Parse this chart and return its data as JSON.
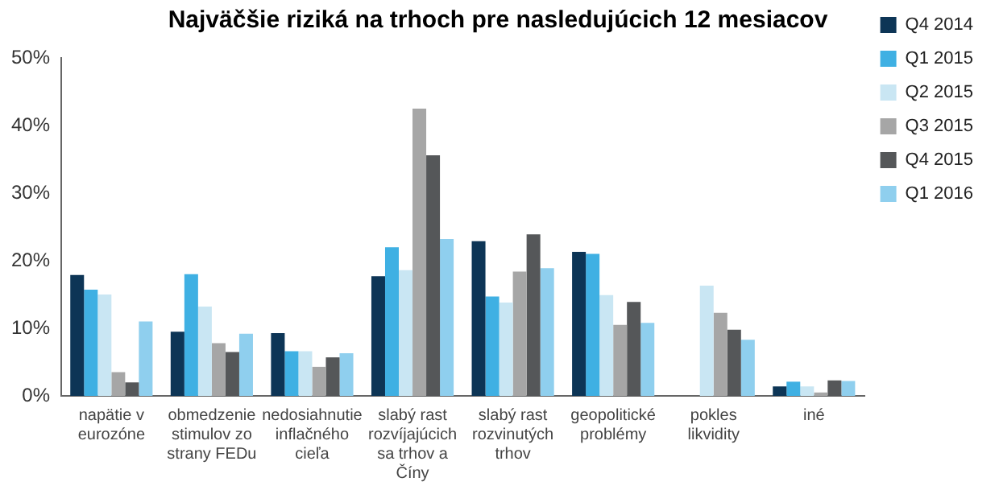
{
  "chart_data": {
    "type": "bar",
    "title": "Najväčšie riziká na trhoch pre nasledujúcich 12 mesiacov",
    "categories": [
      "napätie v eurozóne",
      "obmedzenie stimulov zo strany FEDu",
      "nedosiahnutie inflačného cieľa",
      "slabý rast rozvíjajúcich sa trhov a Číny",
      "slabý rast rozvinutých trhov",
      "geopolitické problémy",
      "pokles likvidity",
      "iné"
    ],
    "series": [
      {
        "name": "Q4 2014",
        "color": "#0d3556",
        "values": [
          17.9,
          9.5,
          9.3,
          17.7,
          22.9,
          21.3,
          null,
          1.4
        ]
      },
      {
        "name": "Q1 2015",
        "color": "#3fb0e3",
        "values": [
          15.7,
          18,
          6.6,
          22,
          14.7,
          21,
          null,
          2.1
        ]
      },
      {
        "name": "Q2 2015",
        "color": "#c9e6f3",
        "values": [
          15,
          13.2,
          6.6,
          18.6,
          13.8,
          14.9,
          16.3,
          1.4
        ]
      },
      {
        "name": "Q3 2015",
        "color": "#a6a6a6",
        "values": [
          3.5,
          7.8,
          4.3,
          42.5,
          18.4,
          10.5,
          12.3,
          0.5
        ]
      },
      {
        "name": "Q4 2015",
        "color": "#555759",
        "values": [
          2,
          6.5,
          5.7,
          35.6,
          23.9,
          13.9,
          9.8,
          2.3
        ]
      },
      {
        "name": "Q1 2016",
        "color": "#8fcfee",
        "values": [
          11,
          9.2,
          6.3,
          23.2,
          18.9,
          10.8,
          8.3,
          2.2
        ]
      }
    ],
    "ylim": [
      0,
      50
    ],
    "yticks": [
      {
        "value": 0,
        "label": "0%"
      },
      {
        "value": 10,
        "label": "10%"
      },
      {
        "value": 20,
        "label": "20%"
      },
      {
        "value": 30,
        "label": "30%"
      },
      {
        "value": 40,
        "label": "40%"
      },
      {
        "value": 50,
        "label": "50%"
      }
    ],
    "grid": false,
    "legend": "right"
  }
}
